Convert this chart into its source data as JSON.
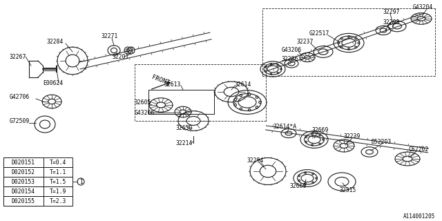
{
  "bg_color": "#ffffff",
  "line_color": "#1a1a1a",
  "text_color": "#000000",
  "diagram_id": "A114001205",
  "font_size_labels": 5.8,
  "font_size_table": 5.8,
  "table_data": [
    [
      "D020151",
      "T=0.4"
    ],
    [
      "D020152",
      "T=1.1"
    ],
    [
      "D020153",
      "T=1.5"
    ],
    [
      "D020154",
      "T=1.9"
    ],
    [
      "D020155",
      "T=2.3"
    ]
  ]
}
